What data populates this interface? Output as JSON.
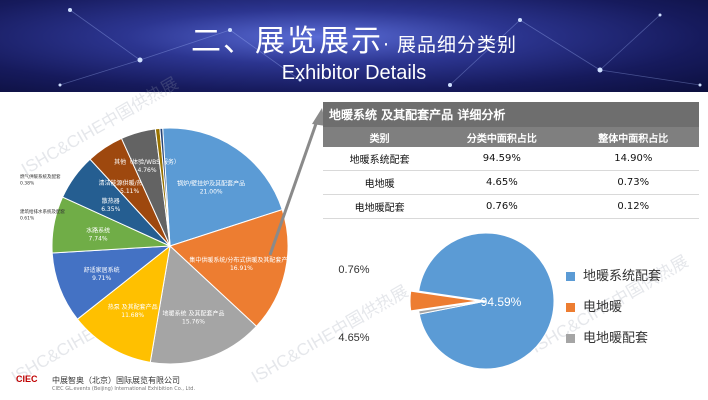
{
  "header": {
    "title_main": "二、展览展示",
    "title_sub": "· 展品细分类别",
    "title_en": "Exhibitor Details"
  },
  "watermark": "ISHC&CIHE中国供热展",
  "left_pie": {
    "type": "pie",
    "slices": [
      {
        "label": "锅炉/壁挂炉及其配套产品",
        "value": "21.00%",
        "color": "#5b9bd5"
      },
      {
        "label": "集中供暖系统/分布式供暖及其配套产品",
        "value": "16.91%",
        "color": "#ed7d31"
      },
      {
        "label": "地暖系统 及其配套产品",
        "value": "15.76%",
        "color": "#a5a5a5"
      },
      {
        "label": "热泵 及其配套产品",
        "value": "11.68%",
        "color": "#ffc000"
      },
      {
        "label": "舒适家居系统",
        "value": "9.71%",
        "color": "#4472c4"
      },
      {
        "label": "水路系统",
        "value": "7.74%",
        "color": "#70ad47"
      },
      {
        "label": "散热器",
        "value": "6.35%",
        "color": "#255e91"
      },
      {
        "label": "清洁能源供暖/热水产品",
        "value": "5.11%",
        "color": "#9e480e"
      },
      {
        "label": "其他（体验/WBS/服务）",
        "value": "4.76%",
        "color": "#636363"
      },
      {
        "label": "建筑给排水系统及配套",
        "value": "0.61%",
        "color": "#997300"
      },
      {
        "label": "燃气供暖系统及配套",
        "value": "0.38%",
        "color": "#264478"
      }
    ]
  },
  "detail_table": {
    "caption": "地暖系统 及其配套产品 详细分析",
    "headers": [
      "类别",
      "分类中面积占比",
      "整体中面积占比"
    ],
    "rows": [
      [
        "地暖系统配套",
        "94.59%",
        "14.90%"
      ],
      [
        "电地暖",
        "4.65%",
        "0.73%"
      ],
      [
        "电地暖配套",
        "0.76%",
        "0.12%"
      ]
    ]
  },
  "chart_data": {
    "type": "pie",
    "categories": [
      "地暖系统配套",
      "电地暖",
      "电地暖配套"
    ],
    "values": [
      94.59,
      4.65,
      0.76
    ],
    "colors": [
      "#5b9bd5",
      "#ed7d31",
      "#a5a5a5"
    ],
    "data_labels": [
      "94.59%",
      "4.65%",
      "0.76%"
    ],
    "legend": "right"
  },
  "footer": {
    "logo_text": "CIEC",
    "company_cn": "中展智奥（北京）国际展览有限公司",
    "company_en": "CIEC GL.events (Beijing) International Exhibition Co., Ltd."
  }
}
